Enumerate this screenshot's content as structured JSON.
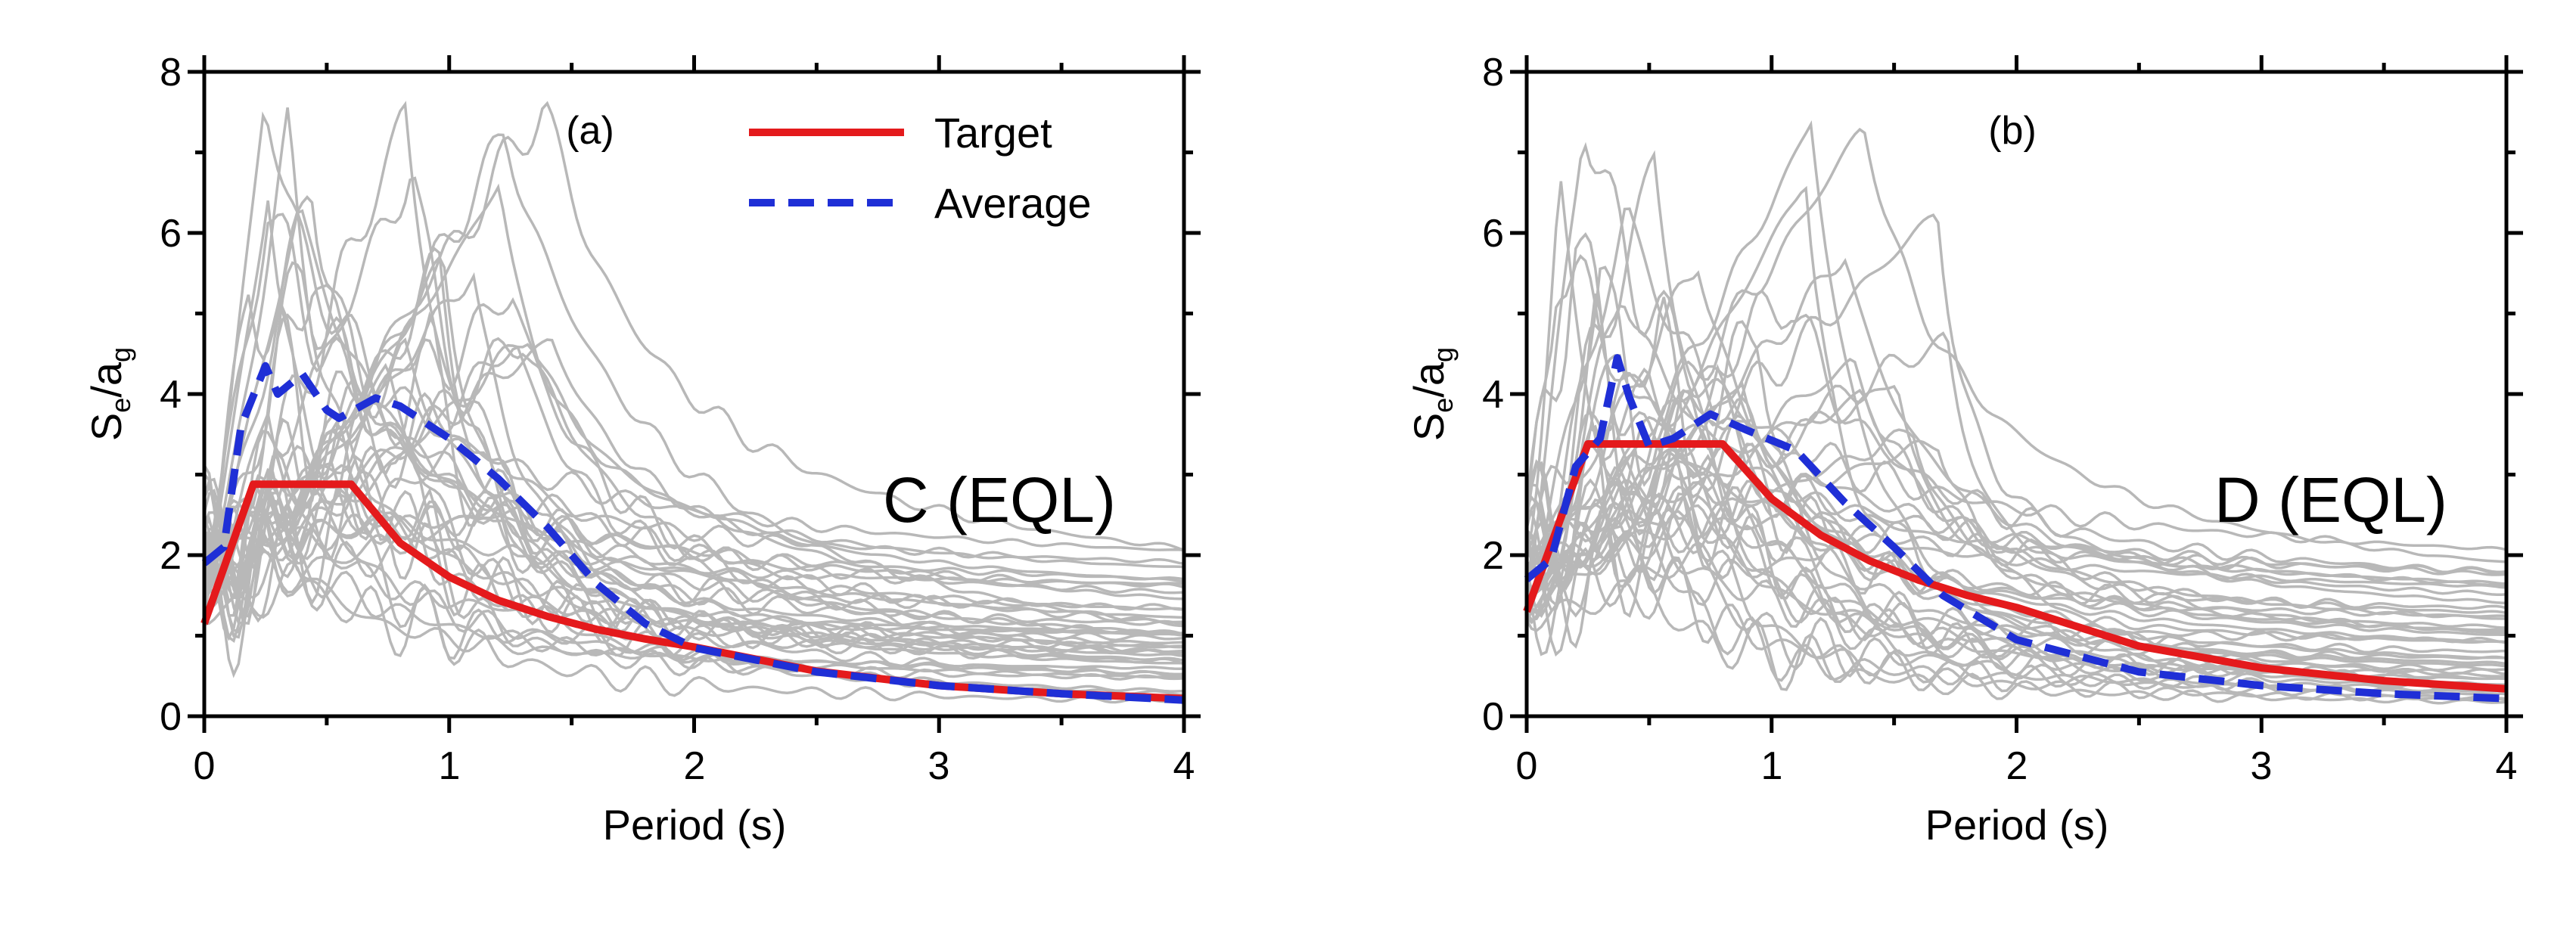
{
  "chart_data": [
    {
      "type": "line",
      "panel_label": "(a)",
      "site_label": "C (EQL)",
      "xlabel": "Period (s)",
      "ylabel_main": "S",
      "ylabel_sub1": "e",
      "ylabel_mid": "/a",
      "ylabel_sub2": "g",
      "xlim": [
        0,
        4
      ],
      "ylim": [
        0,
        8
      ],
      "xticks": [
        "0",
        "1",
        "2",
        "3",
        "4"
      ],
      "yticks": [
        "0",
        "2",
        "4",
        "6",
        "8"
      ],
      "legend": {
        "position": "top-right",
        "entries": [
          "Target",
          "Average"
        ]
      },
      "target": {
        "name": "Target",
        "color": "#e41a1c",
        "x": [
          0,
          0.2,
          0.6,
          0.8,
          1.0,
          1.2,
          1.4,
          1.6,
          1.8,
          2.0,
          2.5,
          3.0,
          3.5,
          4.0
        ],
        "y": [
          1.15,
          2.88,
          2.88,
          2.15,
          1.73,
          1.44,
          1.24,
          1.08,
          0.96,
          0.86,
          0.56,
          0.38,
          0.28,
          0.22
        ]
      },
      "average": {
        "name": "Average",
        "color": "#1f2fd6",
        "x": [
          0,
          0.08,
          0.15,
          0.25,
          0.3,
          0.4,
          0.5,
          0.55,
          0.7,
          0.8,
          1.0,
          1.2,
          1.4,
          1.6,
          1.8,
          2.0,
          2.5,
          3.0,
          3.5,
          4.0
        ],
        "y": [
          1.9,
          2.1,
          3.6,
          4.35,
          4.0,
          4.25,
          3.8,
          3.7,
          3.95,
          3.85,
          3.45,
          2.95,
          2.35,
          1.65,
          1.15,
          0.85,
          0.55,
          0.38,
          0.28,
          0.2
        ]
      },
      "records_color": "#b8b8b8"
    },
    {
      "type": "line",
      "panel_label": "(b)",
      "site_label": "D (EQL)",
      "xlabel": "Period (s)",
      "ylabel_main": "S",
      "ylabel_sub1": "e",
      "ylabel_mid": "/a",
      "ylabel_sub2": "g",
      "xlim": [
        0,
        4
      ],
      "ylim": [
        0,
        8
      ],
      "xticks": [
        "0",
        "1",
        "2",
        "3",
        "4"
      ],
      "yticks": [
        "0",
        "2",
        "4",
        "6",
        "8"
      ],
      "target": {
        "name": "Target",
        "color": "#e41a1c",
        "x": [
          0,
          0.25,
          0.8,
          1.0,
          1.2,
          1.4,
          1.6,
          1.8,
          2.0,
          2.5,
          3.0,
          3.5,
          4.0
        ],
        "y": [
          1.3,
          3.38,
          3.38,
          2.7,
          2.25,
          1.93,
          1.69,
          1.5,
          1.35,
          0.87,
          0.6,
          0.44,
          0.34
        ]
      },
      "average": {
        "name": "Average",
        "color": "#1f2fd6",
        "x": [
          0,
          0.1,
          0.2,
          0.3,
          0.37,
          0.42,
          0.5,
          0.6,
          0.75,
          0.9,
          1.1,
          1.3,
          1.5,
          1.7,
          2.0,
          2.5,
          3.0,
          3.5,
          4.0
        ],
        "y": [
          1.7,
          1.95,
          3.1,
          3.45,
          4.45,
          3.95,
          3.35,
          3.45,
          3.75,
          3.55,
          3.3,
          2.65,
          2.1,
          1.5,
          0.95,
          0.55,
          0.38,
          0.28,
          0.22
        ]
      },
      "records_color": "#b8b8b8"
    }
  ]
}
